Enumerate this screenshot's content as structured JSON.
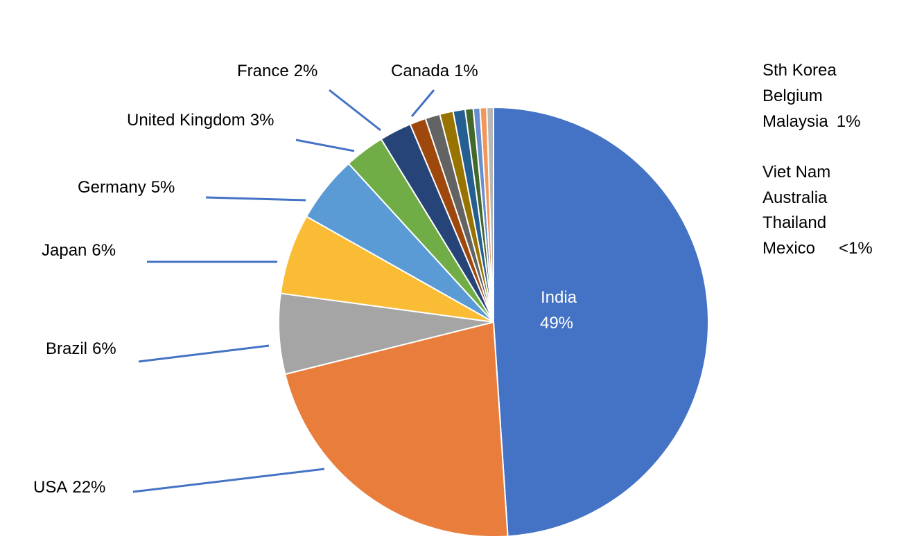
{
  "chart_data": {
    "type": "pie",
    "categories": [
      "India",
      "USA",
      "Brazil",
      "Japan",
      "Germany",
      "United Kingdom",
      "France",
      "Canada",
      "Sth Korea",
      "Belgium",
      "Malaysia",
      "Viet Nam",
      "Australia",
      "Thailand",
      "Mexico"
    ],
    "values": [
      48.6,
      22,
      6,
      6,
      5,
      3,
      2.4,
      1.2,
      1.1,
      1,
      0.9,
      0.6,
      0.5,
      0.5,
      0.5
    ],
    "value_labels": [
      "49%",
      "22%",
      "6%",
      "6%",
      "5%",
      "3%",
      "2%",
      "1%",
      null,
      null,
      "1%",
      null,
      null,
      null,
      "<1%"
    ],
    "colors": [
      "#4472c4",
      "#e97d3c",
      "#a5a5a5",
      "#fbbc35",
      "#5b9bd5",
      "#70ad47",
      "#264478",
      "#9e480e",
      "#636363",
      "#997300",
      "#255e91",
      "#43682b",
      "#698ed0",
      "#f1975a",
      "#b7b7b7"
    ]
  }
}
